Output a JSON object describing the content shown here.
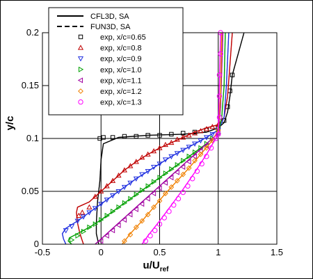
{
  "chart_data": {
    "type": "line",
    "title": "",
    "xlabel_main": "u/U",
    "xlabel_sub": "ref",
    "ylabel": "y/c",
    "xlim": [
      -0.5,
      1.5
    ],
    "ylim": [
      0,
      0.2
    ],
    "xticks": [
      "-0.5",
      "0",
      "0.5",
      "1",
      "1.5"
    ],
    "yticks": [
      "0",
      "0.05",
      "0.1",
      "0.15",
      "0.2"
    ],
    "grid": true,
    "legend_position": "top-left",
    "legend": [
      {
        "label": "CFL3D, SA",
        "kind": "line-solid",
        "color": "#000000"
      },
      {
        "label": "FUN3D, SA",
        "kind": "line-dashed",
        "color": "#000000"
      },
      {
        "label": "exp, x/c=0.65",
        "kind": "square",
        "color": "#000000"
      },
      {
        "label": "exp, x/c=0.8",
        "kind": "triangle-up",
        "color": "#c00000"
      },
      {
        "label": "exp, x/c=0.9",
        "kind": "triangle-down",
        "color": "#2030e0"
      },
      {
        "label": "exp, x/c=1.0",
        "kind": "triangle-right",
        "color": "#00a000"
      },
      {
        "label": "exp, x/c=1.1",
        "kind": "triangle-left",
        "color": "#a000a0"
      },
      {
        "label": "exp, x/c=1.2",
        "kind": "diamond",
        "color": "#f08000"
      },
      {
        "label": "exp, x/c=1.3",
        "kind": "circle",
        "color": "#ff00ff"
      }
    ],
    "series": [
      {
        "x_station": "0.65",
        "color": "#000000",
        "marker": "square",
        "cfd": [
          [
            -0.02,
            0.0
          ],
          [
            -0.03,
            0.005
          ],
          [
            -0.04,
            0.01
          ],
          [
            -0.04,
            0.02
          ],
          [
            -0.03,
            0.04
          ],
          [
            -0.01,
            0.06
          ],
          [
            0.0,
            0.08
          ],
          [
            0.02,
            0.095
          ],
          [
            0.15,
            0.101
          ],
          [
            0.4,
            0.103
          ],
          [
            0.7,
            0.104
          ],
          [
            0.9,
            0.106
          ],
          [
            1.0,
            0.11
          ],
          [
            1.05,
            0.115
          ],
          [
            1.08,
            0.125
          ],
          [
            1.1,
            0.14
          ],
          [
            1.12,
            0.16
          ],
          [
            1.17,
            0.18
          ],
          [
            1.22,
            0.2
          ]
        ],
        "exp": [
          [
            -0.01,
            0.1
          ],
          [
            0.02,
            0.101
          ],
          [
            0.1,
            0.101
          ],
          [
            0.2,
            0.102
          ],
          [
            0.3,
            0.102
          ],
          [
            0.4,
            0.103
          ],
          [
            0.5,
            0.103
          ],
          [
            0.6,
            0.104
          ],
          [
            0.7,
            0.105
          ],
          [
            0.8,
            0.106
          ],
          [
            0.9,
            0.108
          ],
          [
            1.0,
            0.11
          ],
          [
            1.05,
            0.117
          ],
          [
            1.08,
            0.13
          ],
          [
            1.1,
            0.145
          ],
          [
            1.12,
            0.16
          ]
        ]
      },
      {
        "x_station": "0.8",
        "color": "#c00000",
        "marker": "triangle-up",
        "cfd": [
          [
            -0.15,
            0.0
          ],
          [
            -0.18,
            0.01
          ],
          [
            -0.2,
            0.02
          ],
          [
            -0.21,
            0.03
          ],
          [
            -0.2,
            0.035
          ],
          [
            -0.1,
            0.04
          ],
          [
            0.0,
            0.05
          ],
          [
            0.1,
            0.06
          ],
          [
            0.2,
            0.07
          ],
          [
            0.3,
            0.078
          ],
          [
            0.4,
            0.085
          ],
          [
            0.5,
            0.091
          ],
          [
            0.6,
            0.096
          ],
          [
            0.7,
            0.101
          ],
          [
            0.8,
            0.106
          ],
          [
            0.9,
            0.11
          ],
          [
            1.0,
            0.113
          ],
          [
            1.05,
            0.12
          ],
          [
            1.08,
            0.14
          ],
          [
            1.1,
            0.17
          ],
          [
            1.12,
            0.2
          ]
        ],
        "exp": [
          [
            -0.19,
            0.027
          ],
          [
            -0.16,
            0.03
          ],
          [
            -0.1,
            0.035
          ],
          [
            -0.05,
            0.045
          ],
          [
            0.0,
            0.05
          ],
          [
            0.05,
            0.055
          ],
          [
            0.1,
            0.06
          ],
          [
            0.15,
            0.065
          ],
          [
            0.2,
            0.07
          ],
          [
            0.25,
            0.074
          ],
          [
            0.3,
            0.078
          ],
          [
            0.35,
            0.082
          ],
          [
            0.4,
            0.085
          ],
          [
            0.45,
            0.088
          ],
          [
            0.5,
            0.091
          ],
          [
            0.55,
            0.094
          ],
          [
            0.6,
            0.096
          ],
          [
            0.65,
            0.099
          ],
          [
            0.7,
            0.101
          ],
          [
            0.75,
            0.103
          ],
          [
            0.8,
            0.105
          ],
          [
            0.85,
            0.107
          ],
          [
            0.9,
            0.109
          ],
          [
            0.95,
            0.111
          ],
          [
            1.0,
            0.113
          ]
        ]
      },
      {
        "x_station": "0.9",
        "color": "#2030e0",
        "marker": "triangle-down",
        "cfd": [
          [
            -0.3,
            0.0
          ],
          [
            -0.32,
            0.005
          ],
          [
            -0.33,
            0.01
          ],
          [
            -0.3,
            0.015
          ],
          [
            -0.2,
            0.022
          ],
          [
            -0.1,
            0.03
          ],
          [
            0.0,
            0.038
          ],
          [
            0.1,
            0.046
          ],
          [
            0.2,
            0.054
          ],
          [
            0.3,
            0.062
          ],
          [
            0.4,
            0.069
          ],
          [
            0.5,
            0.076
          ],
          [
            0.6,
            0.083
          ],
          [
            0.7,
            0.089
          ],
          [
            0.8,
            0.095
          ],
          [
            0.9,
            0.101
          ],
          [
            1.0,
            0.108
          ],
          [
            1.05,
            0.12
          ],
          [
            1.07,
            0.15
          ],
          [
            1.09,
            0.2
          ]
        ],
        "exp": [
          [
            -0.3,
            0.013
          ],
          [
            -0.25,
            0.017
          ],
          [
            -0.2,
            0.022
          ],
          [
            -0.15,
            0.026
          ],
          [
            -0.1,
            0.03
          ],
          [
            -0.05,
            0.034
          ],
          [
            0.0,
            0.038
          ],
          [
            0.05,
            0.042
          ],
          [
            0.1,
            0.046
          ],
          [
            0.15,
            0.05
          ],
          [
            0.2,
            0.054
          ],
          [
            0.25,
            0.058
          ],
          [
            0.3,
            0.062
          ],
          [
            0.35,
            0.066
          ],
          [
            0.4,
            0.069
          ],
          [
            0.45,
            0.073
          ],
          [
            0.5,
            0.076
          ],
          [
            0.55,
            0.08
          ],
          [
            0.6,
            0.083
          ],
          [
            0.65,
            0.086
          ],
          [
            0.7,
            0.089
          ],
          [
            0.75,
            0.092
          ],
          [
            0.8,
            0.095
          ],
          [
            0.85,
            0.098
          ],
          [
            0.9,
            0.101
          ],
          [
            0.95,
            0.104
          ],
          [
            1.0,
            0.108
          ]
        ]
      },
      {
        "x_station": "1.0",
        "color": "#00a000",
        "marker": "triangle-right",
        "cfd": [
          [
            -0.25,
            0.0
          ],
          [
            -0.28,
            0.003
          ],
          [
            -0.27,
            0.006
          ],
          [
            -0.2,
            0.01
          ],
          [
            -0.1,
            0.016
          ],
          [
            0.0,
            0.023
          ],
          [
            0.1,
            0.031
          ],
          [
            0.2,
            0.039
          ],
          [
            0.3,
            0.047
          ],
          [
            0.4,
            0.055
          ],
          [
            0.5,
            0.063
          ],
          [
            0.6,
            0.071
          ],
          [
            0.7,
            0.079
          ],
          [
            0.8,
            0.087
          ],
          [
            0.9,
            0.095
          ],
          [
            1.0,
            0.105
          ],
          [
            1.03,
            0.12
          ],
          [
            1.05,
            0.15
          ],
          [
            1.06,
            0.2
          ]
        ],
        "exp": [
          [
            -0.25,
            0.004
          ],
          [
            -0.2,
            0.008
          ],
          [
            -0.15,
            0.012
          ],
          [
            -0.1,
            0.016
          ],
          [
            -0.05,
            0.019
          ],
          [
            0.0,
            0.023
          ],
          [
            0.05,
            0.027
          ],
          [
            0.1,
            0.031
          ],
          [
            0.15,
            0.035
          ],
          [
            0.2,
            0.039
          ],
          [
            0.25,
            0.043
          ],
          [
            0.3,
            0.047
          ],
          [
            0.35,
            0.051
          ],
          [
            0.4,
            0.055
          ],
          [
            0.45,
            0.059
          ],
          [
            0.5,
            0.063
          ],
          [
            0.55,
            0.067
          ],
          [
            0.6,
            0.071
          ],
          [
            0.65,
            0.075
          ],
          [
            0.7,
            0.079
          ],
          [
            0.75,
            0.083
          ],
          [
            0.8,
            0.087
          ],
          [
            0.85,
            0.091
          ],
          [
            0.9,
            0.095
          ],
          [
            0.95,
            0.1
          ],
          [
            1.0,
            0.105
          ]
        ]
      },
      {
        "x_station": "1.1",
        "color": "#a000a0",
        "marker": "triangle-left",
        "cfd": [
          [
            -0.05,
            0.0
          ],
          [
            0.0,
            0.005
          ],
          [
            0.1,
            0.015
          ],
          [
            0.2,
            0.025
          ],
          [
            0.3,
            0.035
          ],
          [
            0.4,
            0.045
          ],
          [
            0.5,
            0.055
          ],
          [
            0.6,
            0.065
          ],
          [
            0.7,
            0.075
          ],
          [
            0.8,
            0.085
          ],
          [
            0.9,
            0.095
          ],
          [
            1.0,
            0.105
          ],
          [
            1.02,
            0.13
          ],
          [
            1.04,
            0.2
          ]
        ],
        "exp": [
          [
            0.0,
            0.003
          ],
          [
            0.05,
            0.008
          ],
          [
            0.1,
            0.013
          ],
          [
            0.15,
            0.018
          ],
          [
            0.2,
            0.023
          ],
          [
            0.25,
            0.028
          ],
          [
            0.3,
            0.033
          ],
          [
            0.35,
            0.038
          ],
          [
            0.4,
            0.043
          ],
          [
            0.45,
            0.048
          ],
          [
            0.5,
            0.053
          ],
          [
            0.55,
            0.058
          ],
          [
            0.6,
            0.063
          ],
          [
            0.65,
            0.068
          ],
          [
            0.7,
            0.073
          ],
          [
            0.75,
            0.078
          ],
          [
            0.8,
            0.083
          ],
          [
            0.85,
            0.088
          ],
          [
            0.9,
            0.093
          ],
          [
            0.95,
            0.099
          ],
          [
            1.0,
            0.105
          ]
        ]
      },
      {
        "x_station": "1.2",
        "color": "#f08000",
        "marker": "diamond",
        "cfd": [
          [
            0.18,
            0.0
          ],
          [
            0.25,
            0.01
          ],
          [
            0.35,
            0.022
          ],
          [
            0.45,
            0.035
          ],
          [
            0.55,
            0.048
          ],
          [
            0.65,
            0.06
          ],
          [
            0.75,
            0.072
          ],
          [
            0.85,
            0.085
          ],
          [
            0.95,
            0.098
          ],
          [
            1.0,
            0.108
          ],
          [
            1.02,
            0.14
          ],
          [
            1.03,
            0.2
          ]
        ],
        "exp": [
          [
            0.2,
            0.003
          ],
          [
            0.25,
            0.009
          ],
          [
            0.3,
            0.016
          ],
          [
            0.35,
            0.022
          ],
          [
            0.4,
            0.028
          ],
          [
            0.45,
            0.035
          ],
          [
            0.5,
            0.041
          ],
          [
            0.55,
            0.048
          ],
          [
            0.6,
            0.054
          ],
          [
            0.65,
            0.06
          ],
          [
            0.7,
            0.066
          ],
          [
            0.75,
            0.072
          ],
          [
            0.8,
            0.079
          ],
          [
            0.85,
            0.085
          ],
          [
            0.9,
            0.091
          ],
          [
            0.95,
            0.098
          ],
          [
            1.0,
            0.108
          ]
        ]
      },
      {
        "x_station": "1.3",
        "color": "#ff00ff",
        "marker": "circle",
        "cfd": [
          [
            0.35,
            0.0
          ],
          [
            0.4,
            0.008
          ],
          [
            0.5,
            0.022
          ],
          [
            0.6,
            0.037
          ],
          [
            0.7,
            0.052
          ],
          [
            0.8,
            0.068
          ],
          [
            0.9,
            0.085
          ],
          [
            1.0,
            0.104
          ],
          [
            1.01,
            0.15
          ],
          [
            1.02,
            0.2
          ]
        ],
        "exp": [
          [
            0.38,
            0.003
          ],
          [
            0.42,
            0.008
          ],
          [
            0.46,
            0.013
          ],
          [
            0.5,
            0.019
          ],
          [
            0.54,
            0.025
          ],
          [
            0.58,
            0.031
          ],
          [
            0.62,
            0.037
          ],
          [
            0.66,
            0.043
          ],
          [
            0.7,
            0.049
          ],
          [
            0.74,
            0.055
          ],
          [
            0.78,
            0.062
          ],
          [
            0.82,
            0.069
          ],
          [
            0.86,
            0.076
          ],
          [
            0.9,
            0.083
          ],
          [
            0.94,
            0.091
          ],
          [
            0.98,
            0.1
          ],
          [
            1.0,
            0.104
          ],
          [
            1.01,
            0.12
          ],
          [
            1.01,
            0.14
          ],
          [
            1.01,
            0.16
          ],
          [
            1.02,
            0.18
          ],
          [
            1.02,
            0.2
          ]
        ]
      }
    ]
  }
}
